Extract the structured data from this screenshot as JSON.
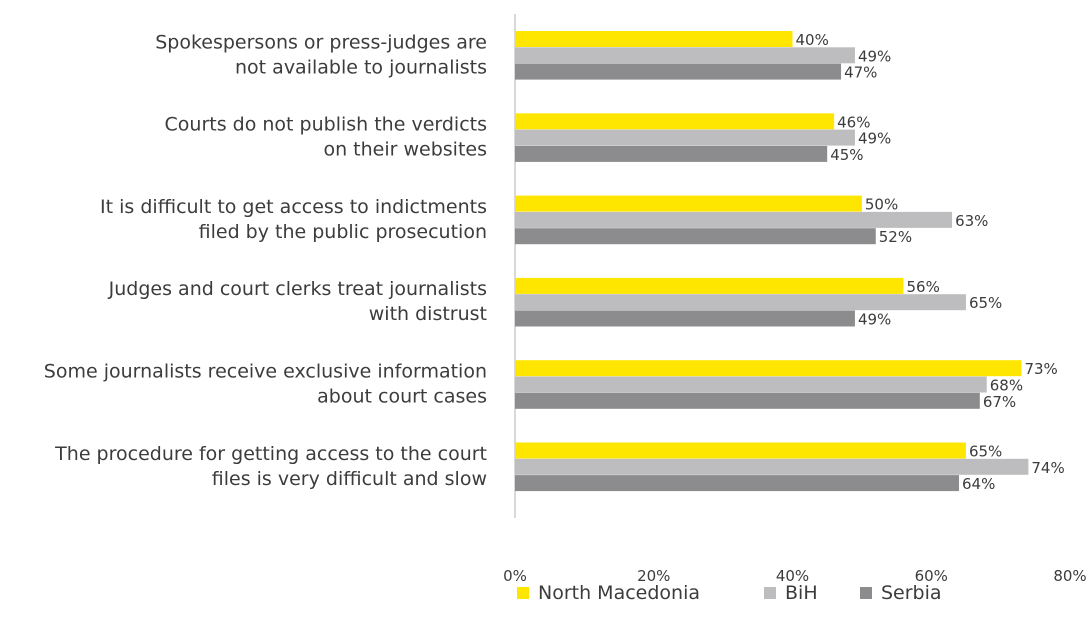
{
  "chart_data": {
    "type": "bar",
    "orientation": "horizontal",
    "title": "",
    "xlabel": "",
    "ylabel": "",
    "xlim": [
      0,
      80
    ],
    "x_ticks": [
      "0%",
      "20%",
      "40%",
      "60%",
      "80%"
    ],
    "value_suffix": "%",
    "grid": false,
    "legend_position": "bottom",
    "categories": [
      [
        "Spokespersons or press-judges are",
        "not available to journalists"
      ],
      [
        "Courts do not publish the verdicts",
        "on their websites"
      ],
      [
        "It is difficult to get access to indictments",
        "filed by the public prosecution"
      ],
      [
        "Judges and court clerks treat journalists",
        "with distrust"
      ],
      [
        "Some journalists receive exclusive information",
        "about court cases"
      ],
      [
        "The procedure for getting  access to the court",
        "files is very difficult and slow"
      ]
    ],
    "series": [
      {
        "name": "North Macedonia",
        "color": "#FFE600",
        "values": [
          40,
          46,
          50,
          56,
          73,
          65
        ]
      },
      {
        "name": "BiH",
        "color": "#BDBDBF",
        "values": [
          49,
          49,
          63,
          65,
          68,
          74
        ]
      },
      {
        "name": "Serbia",
        "color": "#8C8C8E",
        "values": [
          47,
          45,
          52,
          49,
          67,
          64
        ]
      }
    ]
  }
}
